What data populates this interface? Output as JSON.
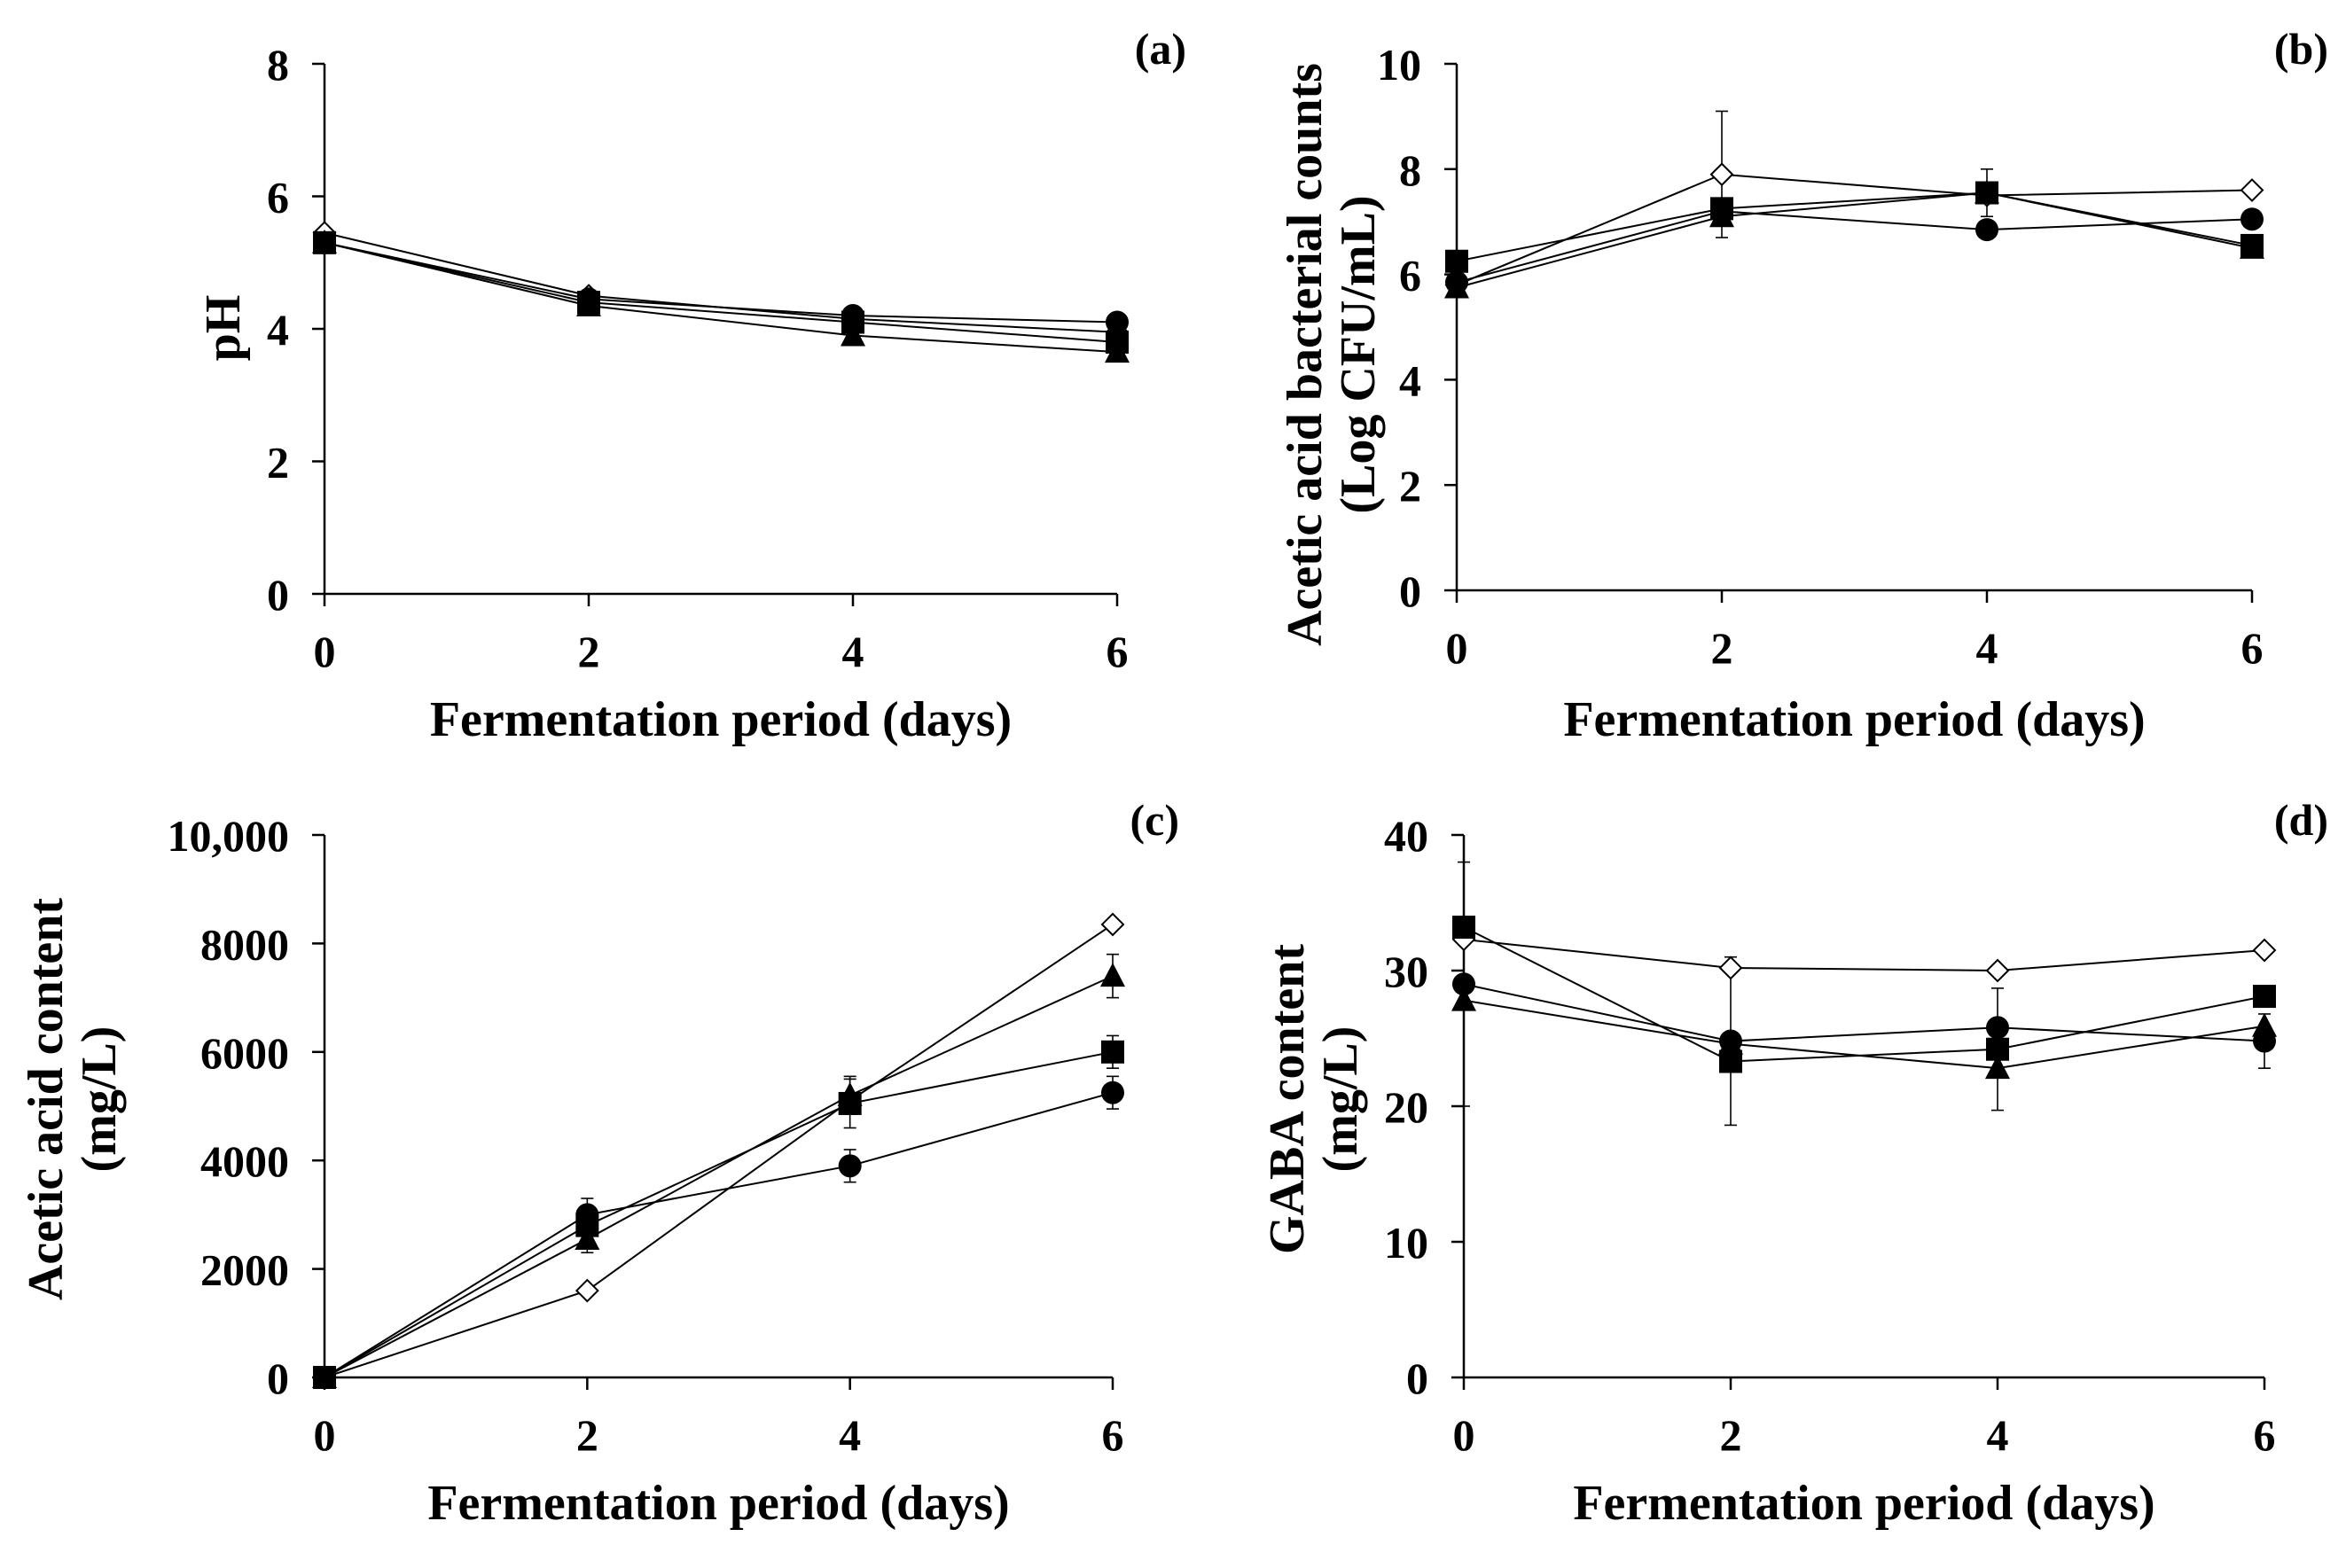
{
  "chart_data": [
    {
      "type": "line",
      "panel_label": "(a)",
      "xlabel": "Fermentation period (days)",
      "ylabel": [
        "pH"
      ],
      "x": [
        0,
        2,
        4,
        6
      ],
      "xticks": [
        "0",
        "2",
        "4",
        "6"
      ],
      "yticks": [
        "0",
        "2",
        "4",
        "6",
        "8"
      ],
      "ylim": [
        0,
        8
      ],
      "xlim": [
        0,
        6
      ],
      "series": [
        {
          "marker": "diamond-open",
          "values": [
            5.45,
            4.5,
            4.15,
            3.95
          ],
          "errors": [
            0,
            0,
            0,
            0
          ]
        },
        {
          "marker": "triangle-filled",
          "values": [
            5.3,
            4.35,
            3.9,
            3.65
          ],
          "errors": [
            0,
            0,
            0,
            0
          ]
        },
        {
          "marker": "square-filled",
          "values": [
            5.3,
            4.4,
            4.1,
            3.8
          ],
          "errors": [
            0,
            0,
            0,
            0
          ]
        },
        {
          "marker": "circle-filled",
          "values": [
            5.3,
            4.45,
            4.2,
            4.1
          ],
          "errors": [
            0,
            0,
            0,
            0
          ]
        }
      ]
    },
    {
      "type": "line",
      "panel_label": "(b)",
      "xlabel": "Fermentation period (days)",
      "ylabel": [
        "Acetic acid bacterial counts",
        "(Log CFU/mL)"
      ],
      "x": [
        0,
        2,
        4,
        6
      ],
      "xticks": [
        "0",
        "2",
        "4",
        "6"
      ],
      "yticks": [
        "0",
        "2",
        "4",
        "6",
        "8",
        "10"
      ],
      "ylim": [
        0,
        10
      ],
      "xlim": [
        0,
        6
      ],
      "series": [
        {
          "marker": "diamond-open",
          "values": [
            5.8,
            7.9,
            7.5,
            7.6
          ],
          "errors": [
            0,
            1.2,
            0,
            0
          ]
        },
        {
          "marker": "triangle-filled",
          "values": [
            5.75,
            7.1,
            7.55,
            6.5
          ],
          "errors": [
            0,
            0,
            0,
            0
          ]
        },
        {
          "marker": "square-filled",
          "values": [
            6.25,
            7.25,
            7.55,
            6.55
          ],
          "errors": [
            0,
            0,
            0.45,
            0
          ]
        },
        {
          "marker": "circle-filled",
          "values": [
            5.85,
            7.2,
            6.85,
            7.05
          ],
          "errors": [
            0,
            0,
            0,
            0
          ]
        }
      ]
    },
    {
      "type": "line",
      "panel_label": "(c)",
      "xlabel": "Fermentation period (days)",
      "ylabel": [
        "Acetic acid content",
        "(mg/L)"
      ],
      "x": [
        0,
        2,
        4,
        6
      ],
      "xticks": [
        "0",
        "2",
        "4",
        "6"
      ],
      "yticks": [
        "0",
        "2000",
        "4000",
        "6000",
        "8000",
        "10,000"
      ],
      "ylim": [
        0,
        10000
      ],
      "xlim": [
        0,
        6
      ],
      "series": [
        {
          "marker": "diamond-open",
          "values": [
            0,
            1600,
            5100,
            8350
          ],
          "errors": [
            0,
            0,
            0,
            0
          ]
        },
        {
          "marker": "triangle-filled",
          "values": [
            0,
            2550,
            5200,
            7400
          ],
          "errors": [
            0,
            250,
            350,
            400
          ]
        },
        {
          "marker": "square-filled",
          "values": [
            0,
            2800,
            5050,
            6000
          ],
          "errors": [
            0,
            250,
            450,
            300
          ]
        },
        {
          "marker": "circle-filled",
          "values": [
            0,
            3000,
            3900,
            5250
          ],
          "errors": [
            0,
            300,
            300,
            300
          ]
        }
      ]
    },
    {
      "type": "line",
      "panel_label": "(d)",
      "xlabel": "Fermentation period (days)",
      "ylabel": [
        "GABA content",
        "(mg/L)"
      ],
      "x": [
        0,
        2,
        4,
        6
      ],
      "xticks": [
        "0",
        "2",
        "4",
        "6"
      ],
      "yticks": [
        "0",
        "10",
        "20",
        "30",
        "40"
      ],
      "ylim": [
        0,
        40
      ],
      "xlim": [
        0,
        6
      ],
      "series": [
        {
          "marker": "diamond-open",
          "values": [
            32.3,
            30.2,
            30.0,
            31.5
          ],
          "errors": [
            0,
            0,
            0,
            0
          ]
        },
        {
          "marker": "triangle-filled",
          "values": [
            27.8,
            24.6,
            22.8,
            25.9
          ],
          "errors": [
            0,
            0,
            0,
            0
          ]
        },
        {
          "marker": "square-filled",
          "values": [
            33.2,
            23.3,
            24.2,
            28.1
          ],
          "errors": [
            0,
            0,
            4.5,
            0
          ]
        },
        {
          "marker": "circle-filled",
          "values": [
            29.0,
            24.8,
            25.8,
            24.8
          ],
          "errors": [
            9.0,
            6.2,
            0,
            2.0
          ]
        }
      ]
    }
  ]
}
